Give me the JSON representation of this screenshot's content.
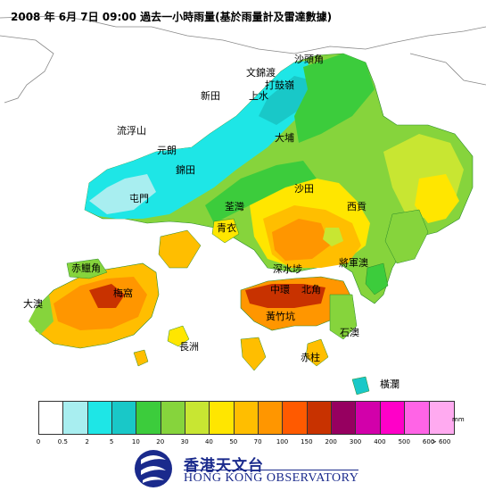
{
  "title": "2008 年 6月 7日 09:00 過去一小時雨量(基於雨量計及雷達數據)",
  "places": [
    {
      "key": "sha_tau_kok",
      "label": "沙頭角"
    },
    {
      "key": "man_kam_to",
      "label": "文錦渡"
    },
    {
      "key": "ta_kwu_ling",
      "label": "打鼓嶺"
    },
    {
      "key": "san_tin",
      "label": "新田"
    },
    {
      "key": "sheung_shui",
      "label": "上水"
    },
    {
      "key": "lau_fau_shan",
      "label": "流浮山"
    },
    {
      "key": "yuen_long",
      "label": "元朗"
    },
    {
      "key": "tai_po",
      "label": "大埔"
    },
    {
      "key": "kam_tin",
      "label": "錦田"
    },
    {
      "key": "sha_tin",
      "label": "沙田"
    },
    {
      "key": "tuen_mun",
      "label": "屯門"
    },
    {
      "key": "tsuen_wan",
      "label": "荃灣"
    },
    {
      "key": "sai_kung",
      "label": "西貢"
    },
    {
      "key": "tsing_yi",
      "label": "青衣"
    },
    {
      "key": "chek_lap_kok",
      "label": "赤鱲角"
    },
    {
      "key": "sham_shui_po",
      "label": "深水埗"
    },
    {
      "key": "tseung_kwan_o",
      "label": "將軍澳"
    },
    {
      "key": "tai_o",
      "label": "大澳"
    },
    {
      "key": "mui_wo",
      "label": "梅窩"
    },
    {
      "key": "central",
      "label": "中環"
    },
    {
      "key": "north_point",
      "label": "北角"
    },
    {
      "key": "wong_chuk_hang",
      "label": "黃竹坑"
    },
    {
      "key": "shek_o",
      "label": "石澳"
    },
    {
      "key": "cheung_chau",
      "label": "長洲"
    },
    {
      "key": "stanley",
      "label": "赤柱"
    },
    {
      "key": "waglan",
      "label": "橫瀾"
    }
  ],
  "legend": {
    "unit": "mm",
    "thresholds": [
      "0",
      "0.5",
      "2",
      "5",
      "10",
      "20",
      "30",
      "40",
      "50",
      "70",
      "100",
      "150",
      "200",
      "300",
      "400",
      "500",
      "600",
      "> 600"
    ],
    "colors": [
      "#ffffff",
      "#a8eef0",
      "#1ee6e6",
      "#19c8c8",
      "#3ccc3c",
      "#86d43c",
      "#c8e632",
      "#ffe600",
      "#ffbe00",
      "#ff9600",
      "#ff5a00",
      "#c83200",
      "#960060",
      "#d200aa",
      "#ff00c8",
      "#ff64e6",
      "#ffaaf0"
    ]
  },
  "logo": {
    "name_zh": "香港天文台",
    "name_en": "HONG KONG OBSERVATORY"
  }
}
